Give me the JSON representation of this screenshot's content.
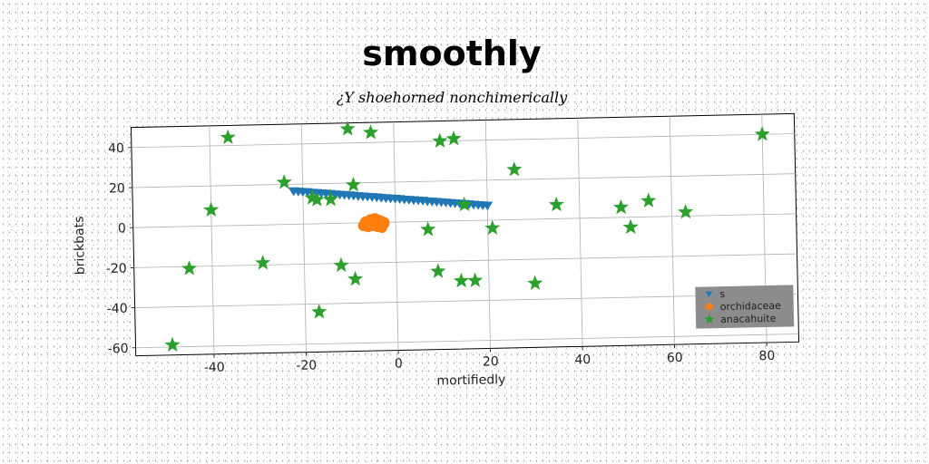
{
  "chart_data": {
    "type": "scatter",
    "title": "smoothly",
    "subtitle": "¿Y shoehorned nonchimerically",
    "xlabel": "mortifiedly",
    "ylabel": "brickbats",
    "xlim": [
      -57,
      87
    ],
    "ylim": [
      -64,
      50
    ],
    "xticks": [
      -40,
      -20,
      0,
      20,
      40,
      60,
      80
    ],
    "yticks": [
      -60,
      -40,
      -20,
      0,
      20,
      40
    ],
    "grid": true,
    "legend_position": "lower-right",
    "series": [
      {
        "name": "s",
        "marker": "triangle-down",
        "color": "#1f77b4",
        "x": [
          -22,
          -21,
          -20,
          -19,
          -18,
          -17,
          -16,
          -15,
          -14,
          -13,
          -12,
          -11,
          -10,
          -9,
          -8,
          -7,
          -6,
          -5,
          -4,
          -3,
          -2,
          -1,
          0,
          1,
          2,
          3,
          4,
          5,
          6,
          7,
          8,
          9,
          10,
          11,
          12,
          13,
          14,
          15,
          16,
          17,
          18,
          19,
          20
        ],
        "y": [
          16.5,
          16.3,
          16.1,
          15.9,
          15.6,
          15.4,
          15.2,
          15,
          14.8,
          14.5,
          14.3,
          14.1,
          13.9,
          13.7,
          13.4,
          13.2,
          13,
          12.8,
          12.6,
          12.3,
          12.1,
          11.9,
          11.7,
          11.5,
          11.2,
          11,
          10.8,
          10.6,
          10.4,
          10.1,
          9.9,
          9.7,
          9.5,
          9.3,
          9,
          8.8,
          8.6,
          8.4,
          8.2,
          7.9,
          7.7,
          7.5,
          7.3
        ]
      },
      {
        "name": "orchidaceae",
        "marker": "circle",
        "color": "#ff7f0e",
        "x": [
          -7,
          -6.5,
          -6,
          -5.5,
          -5,
          -4.5,
          -4,
          -3.5,
          -3,
          -2.5,
          -6,
          -5,
          -4,
          -3,
          -5.5,
          -4.5,
          -3.5,
          -2.5,
          -6.5,
          -3
        ],
        "y": [
          -1.5,
          0.5,
          -0.5,
          1,
          -1,
          0,
          1.5,
          -1,
          0.5,
          -0.5,
          -2,
          -1.5,
          -2,
          -1.5,
          1.5,
          2,
          1,
          0,
          0,
          -2.5
        ]
      },
      {
        "name": "anacahuite",
        "marker": "star",
        "color": "#2ca02c",
        "x": [
          -36,
          -10,
          -5,
          10,
          13,
          26,
          80,
          -24,
          -9,
          -40,
          -18,
          -17,
          -14,
          15,
          35,
          49,
          55,
          63,
          51,
          21,
          7,
          -45,
          -29,
          -12,
          -9,
          9,
          14,
          17,
          30,
          -17,
          -49
        ],
        "y": [
          44,
          47,
          45,
          40,
          41,
          25,
          40,
          21,
          19,
          8,
          13,
          12,
          12,
          8,
          7,
          5,
          8,
          2,
          -5,
          -4,
          -4,
          -21,
          -19,
          -21,
          -28,
          -25,
          -30,
          -30,
          -32,
          -44,
          -59
        ]
      }
    ]
  }
}
